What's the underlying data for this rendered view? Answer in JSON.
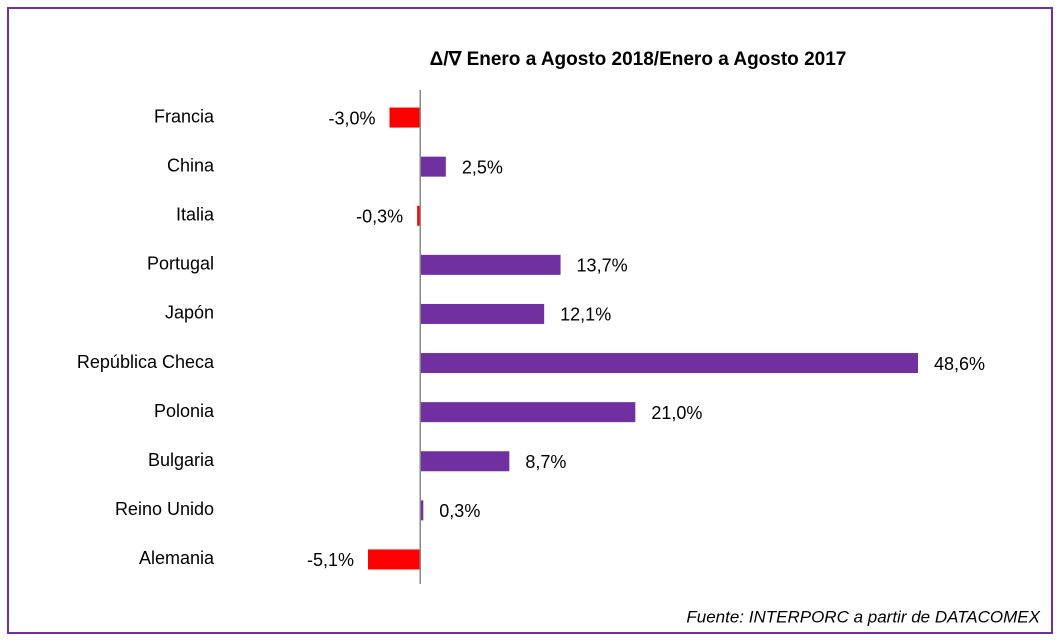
{
  "chart_data": {
    "type": "hbar",
    "title": "Δ/∇  Enero a Agosto 2018/Enero  a Agosto 2017",
    "source": "Fuente: INTERPORC  a partir de DATACOMEX",
    "categories": [
      "Francia",
      "China",
      "Italia",
      "Portugal",
      "Japón",
      "República Checa",
      "Polonia",
      "Bulgaria",
      "Reino Unido",
      "Alemania"
    ],
    "values": [
      -3.0,
      2.5,
      -0.3,
      13.7,
      12.1,
      48.6,
      21.0,
      8.7,
      0.3,
      -5.1
    ],
    "value_labels": [
      "-3,0%",
      "2,5%",
      "-0,3%",
      "13,7%",
      "12,1%",
      "48,6%",
      "21,0%",
      "8,7%",
      "0,3%",
      "-5,1%"
    ],
    "color": "#7030a0",
    "negative_color": "#ff0000"
  }
}
